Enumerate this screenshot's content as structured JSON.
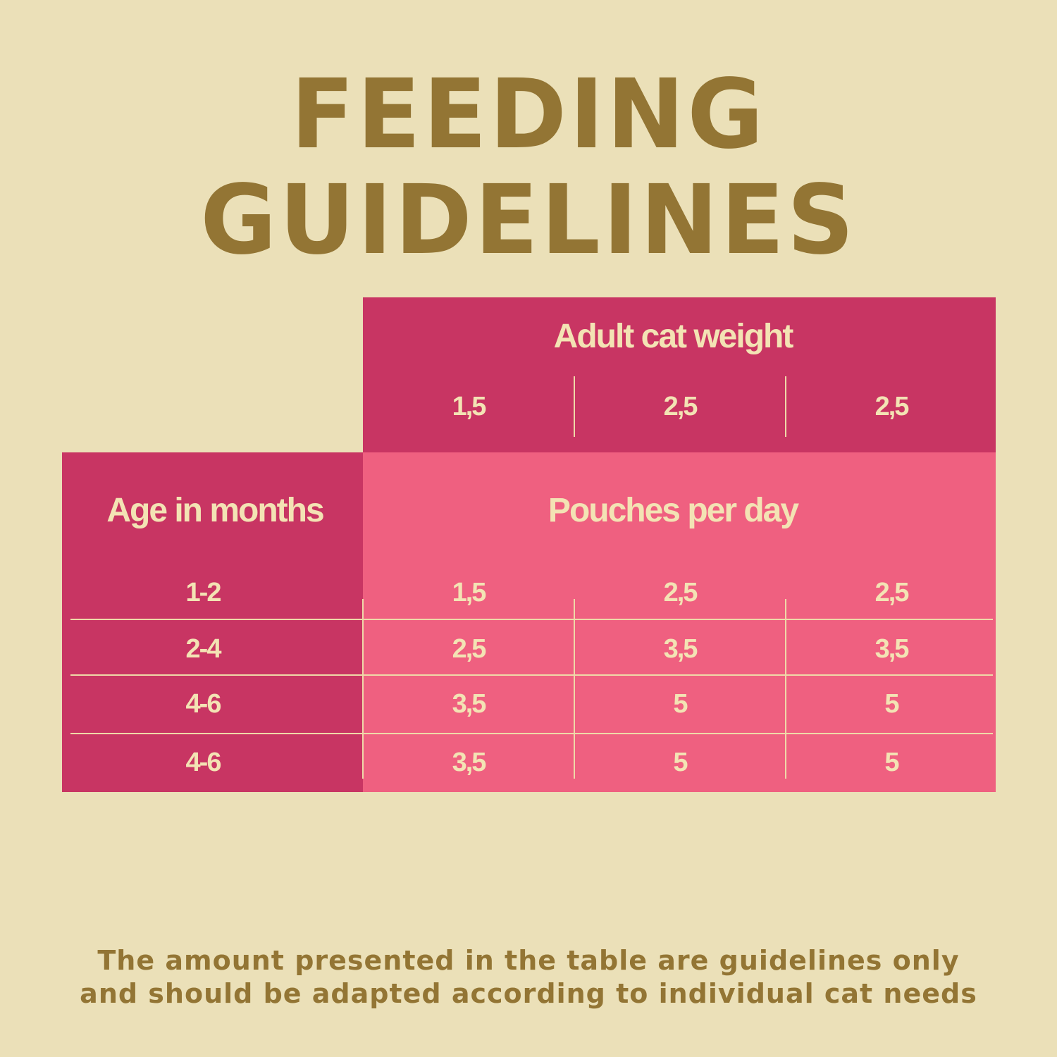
{
  "title": "FEEDING GUIDELINES",
  "table": {
    "column_group_header": "Adult cat weight",
    "weights": [
      "1,5",
      "2,5",
      "2,5"
    ],
    "row_group_header": "Age in months",
    "value_header": "Pouches per day",
    "rows": [
      {
        "age": "1-2",
        "values": [
          "1,5",
          "2,5",
          "2,5"
        ]
      },
      {
        "age": "2-4",
        "values": [
          "2,5",
          "3,5",
          "3,5"
        ]
      },
      {
        "age": "4-6",
        "values": [
          "3,5",
          "5",
          "5"
        ]
      },
      {
        "age": "4-6",
        "values": [
          "3,5",
          "5",
          "5"
        ]
      }
    ]
  },
  "footer": {
    "line1": "The amount presented in the table are guidelines only",
    "line2": "and should be adapted according to individual cat needs"
  },
  "colors": {
    "background": "#ebe0b8",
    "title": "#937534",
    "dark_pink": "#c83563",
    "light_pink": "#ef6080",
    "cell_text": "#f3e3b4"
  }
}
